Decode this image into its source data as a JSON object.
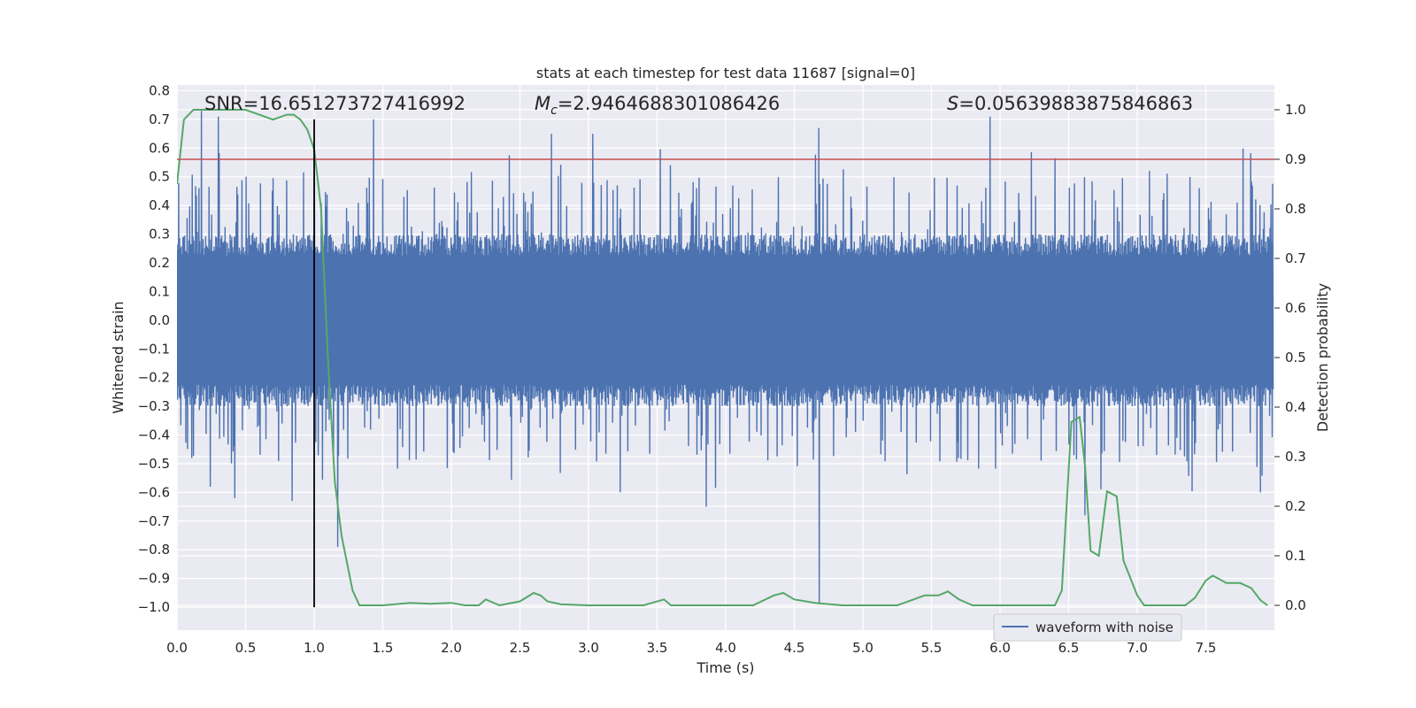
{
  "chart_data": {
    "type": "line",
    "title": "stats at each timestep for test data 11687 [signal=0]",
    "xlabel": "Time (s)",
    "ylabel_left": "Whitened strain",
    "ylabel_right": "Detection probability",
    "xlim": [
      0.0,
      8.0
    ],
    "ylim_left": [
      -1.08,
      0.82
    ],
    "ylim_right": [
      -0.05,
      1.05
    ],
    "x_ticks": [
      "0.0",
      "0.5",
      "1.0",
      "1.5",
      "2.0",
      "2.5",
      "3.0",
      "3.5",
      "4.0",
      "4.5",
      "5.0",
      "5.5",
      "6.0",
      "6.5",
      "7.0",
      "7.5"
    ],
    "y_left_ticks": [
      "0.8",
      "0.7",
      "0.6",
      "0.5",
      "0.4",
      "0.3",
      "0.2",
      "0.1",
      "0.0",
      "−0.1",
      "−0.2",
      "−0.3",
      "−0.4",
      "−0.5",
      "−0.6",
      "−0.7",
      "−0.8",
      "−0.9",
      "−1.0"
    ],
    "y_right_ticks": [
      "1.0",
      "0.9",
      "0.8",
      "0.7",
      "0.6",
      "0.5",
      "0.4",
      "0.3",
      "0.2",
      "0.1",
      "0.0"
    ],
    "annotations": {
      "snr": "SNR=16.651273727416992",
      "mc_symbol": "M",
      "mc_sub": "c",
      "mc_value": "=2.9464688301086426",
      "s_symbol": "S",
      "s_value": "=0.05639883875846863"
    },
    "threshold_line": {
      "detection_probability": 0.9,
      "color": "#c44e52"
    },
    "vertical_line": {
      "x": 1.0,
      "color": "#000000"
    },
    "legend": {
      "placement": "lower right",
      "entries": [
        "waveform with noise"
      ]
    },
    "grid": true,
    "series": [
      {
        "name": "waveform with noise",
        "axis": "left",
        "color": "#4c72b0",
        "noise_envelope": {
          "core": [
            -0.3,
            0.3
          ],
          "peak_max": 0.73,
          "peak_min": -0.99
        },
        "notable_spikes": [
          {
            "x": 0.18,
            "y": 0.73
          },
          {
            "x": 0.3,
            "y": 0.71
          },
          {
            "x": 1.43,
            "y": 0.7
          },
          {
            "x": 2.73,
            "y": 0.65
          },
          {
            "x": 3.03,
            "y": 0.65
          },
          {
            "x": 4.68,
            "y": 0.67
          },
          {
            "x": 5.93,
            "y": 0.71
          },
          {
            "x": 0.42,
            "y": -0.62
          },
          {
            "x": 0.84,
            "y": -0.63
          },
          {
            "x": 1.17,
            "y": -0.79
          },
          {
            "x": 3.86,
            "y": -0.65
          },
          {
            "x": 4.68,
            "y": -0.99
          },
          {
            "x": 6.62,
            "y": -0.68
          },
          {
            "x": 7.9,
            "y": -0.6
          }
        ]
      },
      {
        "name": "",
        "axis": "right",
        "color": "#55a868",
        "x": [
          0.0,
          0.05,
          0.12,
          0.25,
          0.5,
          0.6,
          0.7,
          0.8,
          0.85,
          0.9,
          0.95,
          1.0,
          1.05,
          1.1,
          1.15,
          1.2,
          1.28,
          1.33,
          1.5,
          1.7,
          1.85,
          2.0,
          2.1,
          2.2,
          2.25,
          2.35,
          2.5,
          2.6,
          2.65,
          2.7,
          2.8,
          3.0,
          3.2,
          3.4,
          3.55,
          3.6,
          3.7,
          3.85,
          4.0,
          4.2,
          4.35,
          4.42,
          4.5,
          4.65,
          4.85,
          5.0,
          5.25,
          5.35,
          5.45,
          5.55,
          5.62,
          5.7,
          5.8,
          6.0,
          6.2,
          6.4,
          6.45,
          6.52,
          6.58,
          6.62,
          6.66,
          6.72,
          6.78,
          6.85,
          6.9,
          7.0,
          7.05,
          7.12,
          7.2,
          7.35,
          7.42,
          7.5,
          7.55,
          7.65,
          7.75,
          7.83,
          7.9,
          7.95
        ],
        "y": [
          0.85,
          0.98,
          1.0,
          1.0,
          1.0,
          0.99,
          0.98,
          0.99,
          0.99,
          0.98,
          0.96,
          0.92,
          0.8,
          0.5,
          0.25,
          0.14,
          0.03,
          0.0,
          0.0,
          0.005,
          0.003,
          0.005,
          0.0,
          0.0,
          0.012,
          0.0,
          0.008,
          0.025,
          0.02,
          0.008,
          0.002,
          0.0,
          0.0,
          0.0,
          0.012,
          0.0,
          0.0,
          0.0,
          0.0,
          0.0,
          0.02,
          0.025,
          0.012,
          0.005,
          0.0,
          0.0,
          0.0,
          0.01,
          0.02,
          0.02,
          0.028,
          0.012,
          0.0,
          0.0,
          0.0,
          0.0,
          0.03,
          0.37,
          0.38,
          0.28,
          0.11,
          0.1,
          0.23,
          0.22,
          0.09,
          0.02,
          0.0,
          0.0,
          0.0,
          0.0,
          0.015,
          0.05,
          0.06,
          0.045,
          0.045,
          0.035,
          0.01,
          0.0
        ]
      }
    ]
  }
}
